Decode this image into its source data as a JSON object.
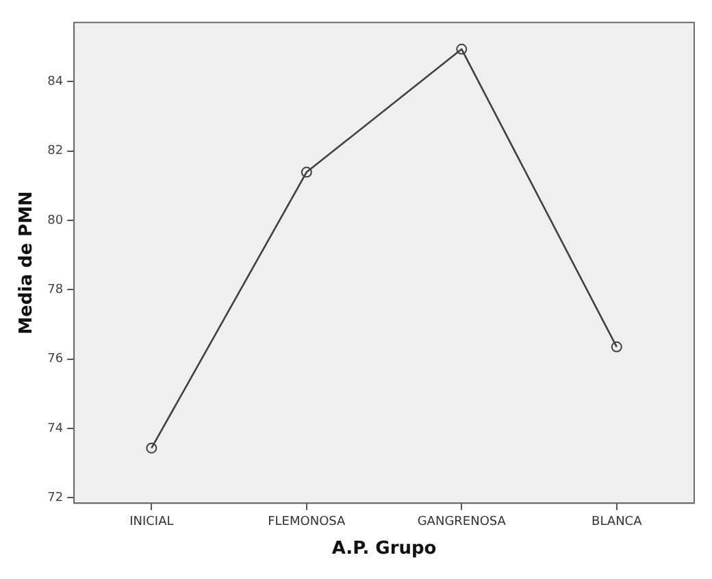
{
  "chart_data": {
    "type": "line",
    "xlabel": "A.P. Grupo",
    "ylabel": "Media de PMN",
    "categories": [
      "INICIAL",
      "FLEMONOSA",
      "GANGRENOSA",
      "BLANCA"
    ],
    "series": [
      {
        "color": "#404040",
        "values": [
          73.43,
          81.39,
          84.94,
          76.35
        ]
      }
    ],
    "ylim": [
      71.84,
      85.71
    ],
    "yticks": [
      72,
      74,
      76,
      78,
      80,
      82,
      84
    ],
    "marker": "circle",
    "line_style": "solid",
    "grid": false,
    "legend": false
  }
}
